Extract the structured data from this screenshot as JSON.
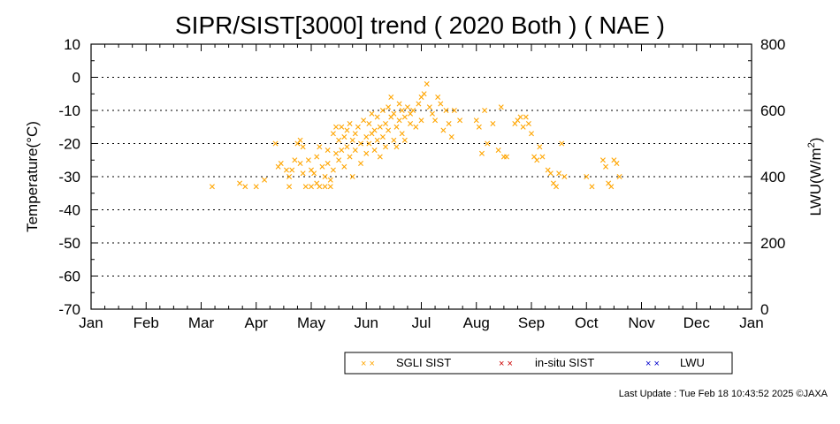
{
  "chart_data": {
    "type": "scatter",
    "title": "SIPR/SIST[3000] trend ( 2020 Both ) ( NAE )",
    "ylabel_left": "Temperature(°C)",
    "ylabel_right_main": "LWU(W/m",
    "ylabel_right_sup": "2",
    "ylabel_right_end": ")",
    "ylim_left": [
      -70,
      10
    ],
    "ylim_right": [
      0,
      800
    ],
    "yticks_left": [
      "10",
      "0",
      "-10",
      "-20",
      "-30",
      "-40",
      "-50",
      "-60",
      "-70"
    ],
    "yticks_right": [
      "800",
      "600",
      "400",
      "200",
      "0"
    ],
    "xticks": [
      "Jan",
      "Feb",
      "Mar",
      "Apr",
      "May",
      "Jun",
      "Jul",
      "Aug",
      "Sep",
      "Oct",
      "Nov",
      "Dec",
      "Jan"
    ],
    "grid": "horizontal dotted",
    "legend_position": "bottom-right",
    "series": [
      {
        "name": "SGLI SIST",
        "marker": "x",
        "color": "#FFA500",
        "x_unit": "month",
        "points": [
          [
            2.2,
            -33
          ],
          [
            2.7,
            -32
          ],
          [
            2.8,
            -33
          ],
          [
            3.0,
            -33
          ],
          [
            3.15,
            -31
          ],
          [
            3.35,
            -20
          ],
          [
            3.4,
            -27
          ],
          [
            3.45,
            -26
          ],
          [
            3.55,
            -28
          ],
          [
            3.6,
            -30
          ],
          [
            3.6,
            -33
          ],
          [
            3.65,
            -28
          ],
          [
            3.7,
            -25
          ],
          [
            3.75,
            -20
          ],
          [
            3.8,
            -19
          ],
          [
            3.8,
            -26
          ],
          [
            3.85,
            -21
          ],
          [
            3.85,
            -29
          ],
          [
            3.9,
            -33
          ],
          [
            3.95,
            -25
          ],
          [
            4.0,
            -28
          ],
          [
            4.0,
            -33
          ],
          [
            4.05,
            -29
          ],
          [
            4.1,
            -24
          ],
          [
            4.1,
            -32
          ],
          [
            4.15,
            -21
          ],
          [
            4.15,
            -33
          ],
          [
            4.2,
            -27
          ],
          [
            4.25,
            -30
          ],
          [
            4.25,
            -33
          ],
          [
            4.3,
            -26
          ],
          [
            4.3,
            -22
          ],
          [
            4.35,
            -31
          ],
          [
            4.35,
            -33
          ],
          [
            4.4,
            -28
          ],
          [
            4.4,
            -17
          ],
          [
            4.45,
            -15
          ],
          [
            4.45,
            -23
          ],
          [
            4.5,
            -25
          ],
          [
            4.5,
            -19
          ],
          [
            4.55,
            -22
          ],
          [
            4.55,
            -15
          ],
          [
            4.6,
            -27
          ],
          [
            4.6,
            -18
          ],
          [
            4.65,
            -16
          ],
          [
            4.65,
            -21
          ],
          [
            4.7,
            -24
          ],
          [
            4.7,
            -14
          ],
          [
            4.75,
            -19
          ],
          [
            4.75,
            -30
          ],
          [
            4.8,
            -17
          ],
          [
            4.8,
            -22
          ],
          [
            4.85,
            -15
          ],
          [
            4.9,
            -20
          ],
          [
            4.9,
            -26
          ],
          [
            4.95,
            -13
          ],
          [
            5.0,
            -18
          ],
          [
            5.0,
            -23
          ],
          [
            5.05,
            -14
          ],
          [
            5.05,
            -20
          ],
          [
            5.1,
            -11
          ],
          [
            5.1,
            -17
          ],
          [
            5.15,
            -22
          ],
          [
            5.15,
            -16
          ],
          [
            5.2,
            -12
          ],
          [
            5.2,
            -19
          ],
          [
            5.25,
            -24
          ],
          [
            5.25,
            -15
          ],
          [
            5.3,
            -18
          ],
          [
            5.3,
            -10
          ],
          [
            5.35,
            -21
          ],
          [
            5.35,
            -14
          ],
          [
            5.4,
            -9
          ],
          [
            5.4,
            -16
          ],
          [
            5.45,
            -12
          ],
          [
            5.45,
            -6
          ],
          [
            5.5,
            -19
          ],
          [
            5.5,
            -11
          ],
          [
            5.55,
            -15
          ],
          [
            5.55,
            -21
          ],
          [
            5.6,
            -8
          ],
          [
            5.6,
            -13
          ],
          [
            5.65,
            -17
          ],
          [
            5.65,
            -10
          ],
          [
            5.7,
            -12
          ],
          [
            5.7,
            -19
          ],
          [
            5.75,
            -9
          ],
          [
            5.8,
            -14
          ],
          [
            5.8,
            -11
          ],
          [
            5.85,
            -10
          ],
          [
            5.9,
            -15
          ],
          [
            5.95,
            -8
          ],
          [
            6.0,
            -13
          ],
          [
            6.0,
            -6
          ],
          [
            6.05,
            -5
          ],
          [
            6.1,
            -2
          ],
          [
            6.15,
            -9
          ],
          [
            6.2,
            -11
          ],
          [
            6.25,
            -13
          ],
          [
            6.3,
            -6
          ],
          [
            6.35,
            -8
          ],
          [
            6.4,
            -16
          ],
          [
            6.45,
            -10
          ],
          [
            6.5,
            -14
          ],
          [
            6.55,
            -18
          ],
          [
            6.6,
            -10
          ],
          [
            6.7,
            -13
          ],
          [
            7.0,
            -13
          ],
          [
            7.05,
            -15
          ],
          [
            7.1,
            -23
          ],
          [
            7.15,
            -10
          ],
          [
            7.2,
            -20
          ],
          [
            7.3,
            -14
          ],
          [
            7.4,
            -22
          ],
          [
            7.45,
            -9
          ],
          [
            7.5,
            -24
          ],
          [
            7.55,
            -24
          ],
          [
            7.7,
            -14
          ],
          [
            7.75,
            -13
          ],
          [
            7.8,
            -12
          ],
          [
            7.85,
            -15
          ],
          [
            7.9,
            -12
          ],
          [
            7.95,
            -14
          ],
          [
            8.0,
            -17
          ],
          [
            8.05,
            -24
          ],
          [
            8.1,
            -25
          ],
          [
            8.15,
            -21
          ],
          [
            8.2,
            -24
          ],
          [
            8.3,
            -28
          ],
          [
            8.35,
            -29
          ],
          [
            8.4,
            -32
          ],
          [
            8.45,
            -33
          ],
          [
            8.5,
            -29
          ],
          [
            8.55,
            -20
          ],
          [
            8.6,
            -30
          ],
          [
            9.0,
            -30
          ],
          [
            9.1,
            -33
          ],
          [
            9.3,
            -25
          ],
          [
            9.35,
            -27
          ],
          [
            9.4,
            -32
          ],
          [
            9.45,
            -33
          ],
          [
            9.5,
            -25
          ],
          [
            9.55,
            -26
          ],
          [
            9.6,
            -30
          ]
        ]
      },
      {
        "name": "in-situ SIST",
        "marker": "x",
        "color": "#CC0000",
        "points": []
      },
      {
        "name": "LWU",
        "marker": "x",
        "color": "#0000CC",
        "points": []
      }
    ]
  },
  "legend": {
    "items": [
      {
        "label": "SGLI SIST",
        "color": "#FFA500"
      },
      {
        "label": "in-situ SIST",
        "color": "#CC0000"
      },
      {
        "label": "LWU",
        "color": "#0000CC"
      }
    ]
  },
  "footer": {
    "last_update": "Last Update : Tue Feb 18 10:43:52 2025  ©JAXA"
  }
}
